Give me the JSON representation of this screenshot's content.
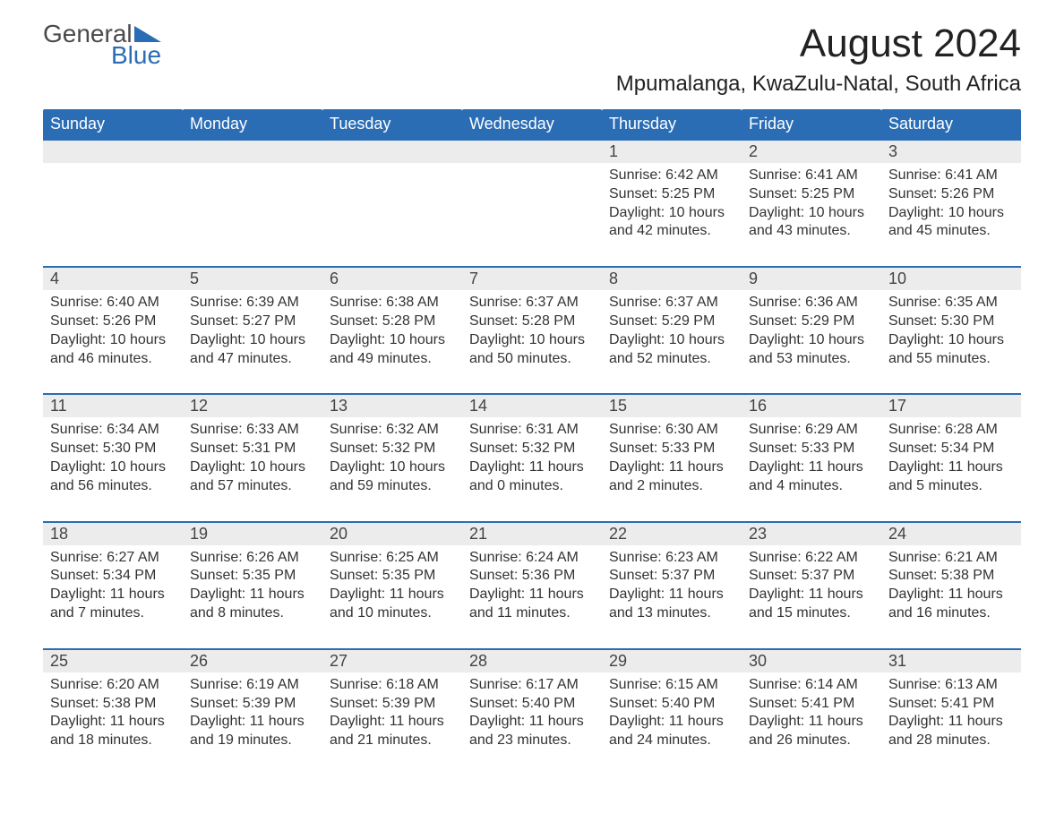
{
  "logo": {
    "text_general": "General",
    "text_blue": "Blue",
    "flag_color": "#2a6db5"
  },
  "title": "August 2024",
  "subtitle": "Mpumalanga, KwaZulu-Natal, South Africa",
  "colors": {
    "header_bg": "#2a6db5",
    "header_text": "#ffffff",
    "daynum_bg": "#ececec",
    "week_border": "#2a6db5",
    "body_text": "#333333",
    "background": "#ffffff"
  },
  "typography": {
    "title_fontsize": 44,
    "subtitle_fontsize": 24,
    "header_fontsize": 18,
    "daynum_fontsize": 18,
    "detail_fontsize": 16,
    "font_family": "Arial"
  },
  "day_headers": [
    "Sunday",
    "Monday",
    "Tuesday",
    "Wednesday",
    "Thursday",
    "Friday",
    "Saturday"
  ],
  "weeks": [
    {
      "days": [
        null,
        null,
        null,
        null,
        {
          "num": "1",
          "sunrise": "6:42 AM",
          "sunset": "5:25 PM",
          "daylight": "10 hours and 42 minutes."
        },
        {
          "num": "2",
          "sunrise": "6:41 AM",
          "sunset": "5:25 PM",
          "daylight": "10 hours and 43 minutes."
        },
        {
          "num": "3",
          "sunrise": "6:41 AM",
          "sunset": "5:26 PM",
          "daylight": "10 hours and 45 minutes."
        }
      ]
    },
    {
      "days": [
        {
          "num": "4",
          "sunrise": "6:40 AM",
          "sunset": "5:26 PM",
          "daylight": "10 hours and 46 minutes."
        },
        {
          "num": "5",
          "sunrise": "6:39 AM",
          "sunset": "5:27 PM",
          "daylight": "10 hours and 47 minutes."
        },
        {
          "num": "6",
          "sunrise": "6:38 AM",
          "sunset": "5:28 PM",
          "daylight": "10 hours and 49 minutes."
        },
        {
          "num": "7",
          "sunrise": "6:37 AM",
          "sunset": "5:28 PM",
          "daylight": "10 hours and 50 minutes."
        },
        {
          "num": "8",
          "sunrise": "6:37 AM",
          "sunset": "5:29 PM",
          "daylight": "10 hours and 52 minutes."
        },
        {
          "num": "9",
          "sunrise": "6:36 AM",
          "sunset": "5:29 PM",
          "daylight": "10 hours and 53 minutes."
        },
        {
          "num": "10",
          "sunrise": "6:35 AM",
          "sunset": "5:30 PM",
          "daylight": "10 hours and 55 minutes."
        }
      ]
    },
    {
      "days": [
        {
          "num": "11",
          "sunrise": "6:34 AM",
          "sunset": "5:30 PM",
          "daylight": "10 hours and 56 minutes."
        },
        {
          "num": "12",
          "sunrise": "6:33 AM",
          "sunset": "5:31 PM",
          "daylight": "10 hours and 57 minutes."
        },
        {
          "num": "13",
          "sunrise": "6:32 AM",
          "sunset": "5:32 PM",
          "daylight": "10 hours and 59 minutes."
        },
        {
          "num": "14",
          "sunrise": "6:31 AM",
          "sunset": "5:32 PM",
          "daylight": "11 hours and 0 minutes."
        },
        {
          "num": "15",
          "sunrise": "6:30 AM",
          "sunset": "5:33 PM",
          "daylight": "11 hours and 2 minutes."
        },
        {
          "num": "16",
          "sunrise": "6:29 AM",
          "sunset": "5:33 PM",
          "daylight": "11 hours and 4 minutes."
        },
        {
          "num": "17",
          "sunrise": "6:28 AM",
          "sunset": "5:34 PM",
          "daylight": "11 hours and 5 minutes."
        }
      ]
    },
    {
      "days": [
        {
          "num": "18",
          "sunrise": "6:27 AM",
          "sunset": "5:34 PM",
          "daylight": "11 hours and 7 minutes."
        },
        {
          "num": "19",
          "sunrise": "6:26 AM",
          "sunset": "5:35 PM",
          "daylight": "11 hours and 8 minutes."
        },
        {
          "num": "20",
          "sunrise": "6:25 AM",
          "sunset": "5:35 PM",
          "daylight": "11 hours and 10 minutes."
        },
        {
          "num": "21",
          "sunrise": "6:24 AM",
          "sunset": "5:36 PM",
          "daylight": "11 hours and 11 minutes."
        },
        {
          "num": "22",
          "sunrise": "6:23 AM",
          "sunset": "5:37 PM",
          "daylight": "11 hours and 13 minutes."
        },
        {
          "num": "23",
          "sunrise": "6:22 AM",
          "sunset": "5:37 PM",
          "daylight": "11 hours and 15 minutes."
        },
        {
          "num": "24",
          "sunrise": "6:21 AM",
          "sunset": "5:38 PM",
          "daylight": "11 hours and 16 minutes."
        }
      ]
    },
    {
      "days": [
        {
          "num": "25",
          "sunrise": "6:20 AM",
          "sunset": "5:38 PM",
          "daylight": "11 hours and 18 minutes."
        },
        {
          "num": "26",
          "sunrise": "6:19 AM",
          "sunset": "5:39 PM",
          "daylight": "11 hours and 19 minutes."
        },
        {
          "num": "27",
          "sunrise": "6:18 AM",
          "sunset": "5:39 PM",
          "daylight": "11 hours and 21 minutes."
        },
        {
          "num": "28",
          "sunrise": "6:17 AM",
          "sunset": "5:40 PM",
          "daylight": "11 hours and 23 minutes."
        },
        {
          "num": "29",
          "sunrise": "6:15 AM",
          "sunset": "5:40 PM",
          "daylight": "11 hours and 24 minutes."
        },
        {
          "num": "30",
          "sunrise": "6:14 AM",
          "sunset": "5:41 PM",
          "daylight": "11 hours and 26 minutes."
        },
        {
          "num": "31",
          "sunrise": "6:13 AM",
          "sunset": "5:41 PM",
          "daylight": "11 hours and 28 minutes."
        }
      ]
    }
  ],
  "labels": {
    "sunrise": "Sunrise: ",
    "sunset": "Sunset: ",
    "daylight": "Daylight: "
  }
}
